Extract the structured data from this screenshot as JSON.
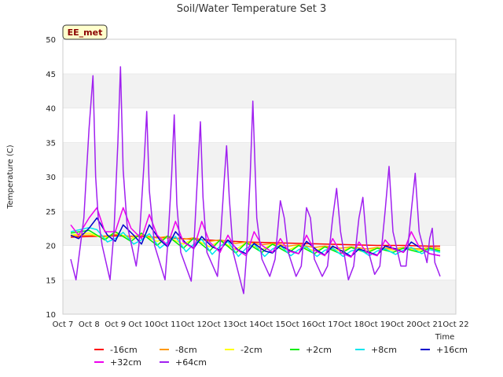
{
  "chart_data": {
    "type": "line",
    "title": "Soil/Water Temperature Set 3",
    "xlabel": "Time",
    "ylabel": "Temperature (C)",
    "station_label": "EE_met",
    "ylim": [
      10,
      50
    ],
    "yticks": [
      10,
      15,
      20,
      25,
      30,
      35,
      40,
      45,
      50
    ],
    "xlim": [
      7,
      22
    ],
    "xticks": [
      7,
      8,
      9,
      10,
      11,
      12,
      13,
      14,
      15,
      16,
      17,
      18,
      19,
      20,
      21,
      22
    ],
    "xtick_labels": [
      "Oct 7",
      "Oct 8",
      "Oct 9",
      "Oct 10",
      "Oct 11",
      "Oct 12",
      "Oct 13",
      "Oct 14",
      "Oct 15",
      "Oct 16",
      "Oct 17",
      "Oct 18",
      "Oct 19",
      "Oct 20",
      "Oct 21",
      "Oct 22"
    ],
    "grid": "horizontal bands",
    "legend_placement": "bottom",
    "series": [
      {
        "name": "-16cm",
        "color": "#ff0000",
        "x": [
          7.3,
          8,
          9,
          10,
          11,
          12,
          13,
          14,
          15,
          16,
          17,
          18,
          19,
          20,
          21,
          21.4
        ],
        "y": [
          21.2,
          21.3,
          21.4,
          21.3,
          21.1,
          20.9,
          20.7,
          20.5,
          20.4,
          20.3,
          20.2,
          20.1,
          20.0,
          20.0,
          19.9,
          19.9
        ]
      },
      {
        "name": "-8cm",
        "color": "#ff9900",
        "x": [
          7.3,
          8,
          8.6,
          9,
          9.6,
          10,
          10.6,
          11,
          11.6,
          12,
          12.6,
          13,
          13.6,
          14,
          14.6,
          15,
          15.6,
          16,
          16.6,
          17,
          17.6,
          18,
          18.6,
          19,
          19.6,
          20,
          20.6,
          21,
          21.4
        ],
        "y": [
          21.4,
          21.5,
          21.3,
          21.6,
          21.3,
          21.5,
          21.1,
          21.3,
          20.9,
          21.1,
          20.6,
          20.8,
          20.3,
          20.5,
          20.1,
          20.3,
          19.9,
          20.1,
          19.7,
          19.9,
          19.6,
          19.8,
          19.5,
          19.7,
          19.5,
          19.7,
          19.5,
          19.7,
          19.6
        ]
      },
      {
        "name": "-2cm",
        "color": "#ffff00",
        "x": [
          7.3,
          8,
          8.6,
          9,
          9.6,
          10,
          10.6,
          11,
          11.6,
          12,
          12.6,
          13,
          13.6,
          14,
          14.6,
          15,
          15.6,
          16,
          16.6,
          17,
          17.6,
          18,
          18.6,
          19,
          19.6,
          20,
          20.6,
          21,
          21.4
        ],
        "y": [
          21.5,
          21.8,
          21.0,
          21.9,
          21.0,
          21.6,
          20.6,
          21.2,
          20.2,
          21.0,
          19.8,
          20.7,
          19.4,
          20.4,
          19.4,
          20.2,
          19.3,
          20.0,
          19.2,
          19.8,
          19.2,
          19.7,
          19.2,
          19.6,
          19.3,
          19.6,
          19.3,
          19.6,
          19.4
        ]
      },
      {
        "name": "+2cm",
        "color": "#00ee00",
        "x": [
          7.3,
          8,
          8.6,
          9,
          9.6,
          10,
          10.6,
          11,
          11.6,
          12,
          12.6,
          13,
          13.6,
          14,
          14.6,
          15,
          15.6,
          16,
          16.6,
          17,
          17.6,
          18,
          18.6,
          19,
          19.6,
          20,
          20.6,
          21,
          21.4
        ],
        "y": [
          21.8,
          22.2,
          20.8,
          22.0,
          20.6,
          21.8,
          20.0,
          21.4,
          19.6,
          21.1,
          19.2,
          20.8,
          18.9,
          20.4,
          19.0,
          20.2,
          18.9,
          20.0,
          18.8,
          19.8,
          18.8,
          19.7,
          18.9,
          19.6,
          19.0,
          19.6,
          19.0,
          19.6,
          19.2
        ]
      },
      {
        "name": "+8cm",
        "color": "#00e5ee",
        "x": [
          7.3,
          8,
          8.3,
          8.7,
          9,
          9.3,
          9.7,
          10,
          10.3,
          10.7,
          11,
          11.3,
          11.7,
          12,
          12.3,
          12.7,
          13,
          13.3,
          13.7,
          14,
          14.3,
          14.7,
          15,
          15.3,
          15.7,
          16,
          16.3,
          16.7,
          17,
          17.3,
          17.7,
          18,
          18.3,
          18.7,
          19,
          19.3,
          19.7,
          20,
          20.3,
          20.7,
          21,
          21.4
        ],
        "y": [
          22.0,
          22.6,
          22.3,
          20.5,
          21.0,
          21.9,
          20.2,
          20.8,
          21.7,
          19.6,
          20.5,
          21.3,
          19.1,
          20.2,
          20.9,
          18.7,
          19.9,
          20.6,
          18.4,
          19.6,
          20.2,
          18.4,
          19.5,
          20.0,
          18.5,
          19.4,
          19.8,
          18.4,
          19.3,
          19.6,
          18.4,
          19.2,
          19.5,
          18.5,
          19.2,
          19.5,
          18.7,
          19.3,
          19.7,
          18.8,
          19.4,
          19.0
        ]
      },
      {
        "name": "+16cm",
        "color": "#0000cc",
        "x": [
          7.3,
          7.6,
          8,
          8.3,
          8.7,
          9,
          9.3,
          9.7,
          10,
          10.3,
          10.7,
          11,
          11.3,
          11.7,
          12,
          12.3,
          12.7,
          13,
          13.3,
          13.7,
          14,
          14.3,
          14.7,
          15,
          15.3,
          15.7,
          16,
          16.3,
          16.7,
          17,
          17.3,
          17.7,
          18,
          18.3,
          18.7,
          19,
          19.3,
          19.7,
          20,
          20.3,
          20.7,
          21,
          21.4
        ],
        "y": [
          21.5,
          21.0,
          22.5,
          24.0,
          21.5,
          20.6,
          23.0,
          21.5,
          20.2,
          23.0,
          20.8,
          19.8,
          22.0,
          20.3,
          19.6,
          21.3,
          19.8,
          19.3,
          20.8,
          19.3,
          18.8,
          20.3,
          19.2,
          18.9,
          20.0,
          19.2,
          18.8,
          20.6,
          19.3,
          18.6,
          19.9,
          19.1,
          18.4,
          19.5,
          19.0,
          18.6,
          19.9,
          19.5,
          19.0,
          20.5,
          19.5,
          18.8,
          18.5
        ]
      },
      {
        "name": "+32cm",
        "color": "#ee00ee",
        "x": [
          7.3,
          7.6,
          8,
          8.3,
          8.6,
          9,
          9.3,
          9.6,
          10,
          10.3,
          10.6,
          11,
          11.3,
          11.6,
          12,
          12.3,
          12.6,
          13,
          13.3,
          13.6,
          14,
          14.3,
          14.6,
          15,
          15.3,
          15.6,
          16,
          16.3,
          16.6,
          17,
          17.3,
          17.6,
          18,
          18.3,
          18.6,
          19,
          19.3,
          19.6,
          20,
          20.3,
          20.6,
          21,
          21.4
        ],
        "y": [
          23.0,
          21.5,
          24.0,
          25.5,
          22.0,
          22.0,
          25.5,
          22.5,
          21.0,
          24.5,
          21.5,
          20.0,
          23.5,
          20.5,
          19.5,
          23.5,
          20.5,
          19.0,
          21.5,
          19.5,
          18.5,
          22.0,
          20.0,
          19.0,
          21.0,
          19.2,
          18.8,
          21.5,
          19.3,
          18.5,
          21.0,
          19.0,
          18.3,
          20.5,
          19.0,
          18.5,
          20.8,
          19.5,
          19.0,
          22.0,
          19.8,
          18.8,
          18.5
        ]
      },
      {
        "name": "+64cm",
        "color": "#a020f0",
        "x": [
          7.3,
          7.5,
          7.8,
          8.0,
          8.15,
          8.25,
          8.35,
          8.5,
          8.8,
          8.95,
          9.1,
          9.2,
          9.3,
          9.45,
          9.8,
          9.9,
          10.1,
          10.2,
          10.3,
          10.5,
          10.9,
          11.0,
          11.15,
          11.25,
          11.35,
          11.5,
          11.9,
          12.0,
          12.15,
          12.25,
          12.35,
          12.5,
          12.9,
          13.0,
          13.15,
          13.25,
          13.35,
          13.5,
          13.9,
          14.0,
          14.15,
          14.25,
          14.4,
          14.6,
          14.9,
          15.1,
          15.3,
          15.45,
          15.6,
          15.9,
          16.1,
          16.3,
          16.45,
          16.6,
          16.9,
          17.1,
          17.3,
          17.45,
          17.6,
          17.9,
          18.1,
          18.3,
          18.45,
          18.6,
          18.9,
          19.1,
          19.3,
          19.45,
          19.6,
          19.9,
          20.1,
          20.3,
          20.45,
          20.6,
          20.9,
          21.0,
          21.1,
          21.2,
          21.3,
          21.4
        ],
        "y": [
          18.0,
          15.0,
          24.0,
          37.0,
          44.7,
          30.0,
          24.0,
          20.0,
          15.0,
          22.0,
          35.0,
          46.0,
          31.0,
          23.0,
          17.0,
          20.0,
          32.0,
          39.5,
          28.0,
          20.0,
          15.0,
          20.0,
          30.0,
          39.0,
          26.0,
          19.0,
          14.8,
          20.0,
          31.0,
          38.0,
          27.0,
          19.0,
          15.5,
          20.0,
          29.0,
          34.5,
          27.0,
          19.0,
          13.0,
          18.0,
          30.0,
          41.0,
          24.0,
          18.0,
          15.5,
          18.0,
          26.5,
          24.0,
          19.0,
          15.5,
          17.0,
          25.5,
          24.0,
          18.0,
          15.5,
          17.0,
          24.0,
          28.3,
          22.0,
          15.0,
          17.0,
          24.0,
          27.0,
          20.0,
          15.8,
          17.0,
          25.0,
          31.5,
          22.0,
          17.0,
          17.0,
          25.0,
          30.5,
          22.0,
          17.5,
          21.0,
          22.5,
          17.5,
          16.5,
          15.5
        ]
      }
    ]
  }
}
